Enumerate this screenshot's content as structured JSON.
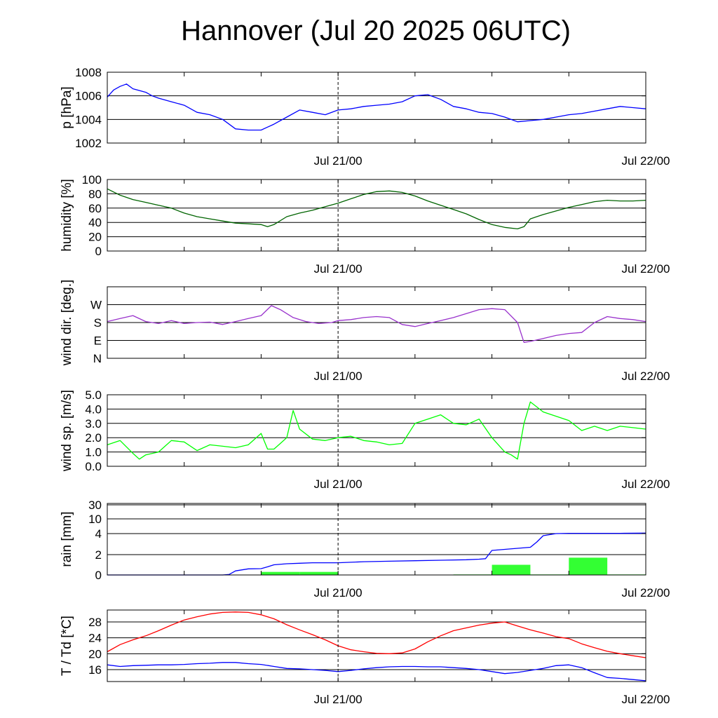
{
  "title": "Hannover (Jul 20 2025 06UTC)",
  "chart_data": [
    {
      "type": "line",
      "ylabel": "p [hPa]",
      "ylim": [
        1002,
        1008
      ],
      "yticks": [
        1002,
        1004,
        1006,
        1008
      ],
      "ytick_labels": [
        "1002",
        "1004",
        "1006",
        "1008"
      ],
      "xlim": [
        0,
        42
      ],
      "x_ticks": [
        {
          "x": 18,
          "label": "Jul 21/00"
        },
        {
          "x": 42,
          "label": "Jul 22/00"
        }
      ],
      "series": [
        {
          "color": "#0000ff",
          "x": [
            0,
            0.5,
            1,
            1.5,
            2,
            3,
            3.5,
            4,
            5,
            6,
            7,
            8,
            9,
            10,
            11,
            12,
            13,
            14,
            15,
            16,
            17,
            18,
            19,
            20,
            21,
            22,
            23,
            24,
            25,
            26,
            27,
            28,
            29,
            30,
            31,
            32,
            33,
            34,
            35,
            36,
            37,
            38,
            39,
            40,
            41,
            42
          ],
          "y": [
            1005.9,
            1006.5,
            1006.8,
            1007.0,
            1006.6,
            1006.3,
            1006.0,
            1005.8,
            1005.5,
            1005.2,
            1004.6,
            1004.4,
            1004.0,
            1003.2,
            1003.1,
            1003.1,
            1003.6,
            1004.2,
            1004.8,
            1004.6,
            1004.4,
            1004.8,
            1004.9,
            1005.1,
            1005.2,
            1005.3,
            1005.5,
            1006.0,
            1006.1,
            1005.7,
            1005.1,
            1004.9,
            1004.6,
            1004.5,
            1004.2,
            1003.8,
            1003.9,
            1004.0,
            1004.2,
            1004.4,
            1004.5,
            1004.7,
            1004.9,
            1005.1,
            1005.0,
            1004.9
          ]
        }
      ]
    },
    {
      "type": "line",
      "ylabel": "humidity [%]",
      "ylim": [
        0,
        100
      ],
      "yticks": [
        0,
        20,
        40,
        60,
        80,
        100
      ],
      "ytick_labels": [
        "0",
        "20",
        "40",
        "60",
        "80",
        "100"
      ],
      "xlim": [
        0,
        42
      ],
      "x_ticks": [
        {
          "x": 18,
          "label": "Jul 21/00"
        },
        {
          "x": 42,
          "label": "Jul 22/00"
        }
      ],
      "series": [
        {
          "color": "#006400",
          "x": [
            0,
            1,
            2,
            3,
            4,
            5,
            6,
            7,
            8,
            9,
            10,
            11,
            12,
            12.5,
            13,
            14,
            15,
            16,
            17,
            18,
            19,
            20,
            21,
            22,
            23,
            24,
            25,
            26,
            27,
            28,
            29,
            30,
            31,
            32,
            32.5,
            33,
            34,
            35,
            36,
            37,
            38,
            39,
            40,
            41,
            42
          ],
          "y": [
            87,
            78,
            72,
            68,
            64,
            60,
            53,
            48,
            45,
            42,
            39,
            38,
            37,
            34,
            37,
            48,
            53,
            57,
            62,
            67,
            73,
            79,
            83,
            84,
            82,
            77,
            70,
            64,
            58,
            52,
            44,
            37,
            33,
            31,
            34,
            45,
            51,
            56,
            61,
            65,
            69,
            71,
            70,
            70,
            71
          ]
        }
      ]
    },
    {
      "type": "line",
      "ylabel": "wind dir. [deg.]",
      "ylim": [
        0,
        360
      ],
      "yticks": [
        0,
        90,
        180,
        270
      ],
      "ytick_labels": [
        "N",
        "E",
        "S",
        "W"
      ],
      "xlim": [
        0,
        42
      ],
      "x_ticks": [
        {
          "x": 18,
          "label": "Jul 21/00"
        },
        {
          "x": 42,
          "label": "Jul 22/00"
        }
      ],
      "series": [
        {
          "color": "#9932cc",
          "x": [
            0,
            1,
            2,
            3,
            4,
            5,
            6,
            7,
            8,
            9,
            10,
            11,
            12,
            12.8,
            13.5,
            14.5,
            15.5,
            16.5,
            17.5,
            18,
            19,
            20,
            21,
            22,
            23,
            24,
            25,
            26,
            27,
            28,
            29,
            30,
            31,
            32,
            32.5,
            33,
            34,
            35,
            36,
            37,
            38,
            39,
            40,
            41,
            42
          ],
          "y": [
            185,
            200,
            215,
            185,
            175,
            190,
            175,
            180,
            182,
            170,
            185,
            200,
            215,
            265,
            245,
            205,
            185,
            175,
            180,
            190,
            195,
            205,
            210,
            205,
            170,
            160,
            175,
            190,
            205,
            225,
            245,
            250,
            245,
            180,
            80,
            85,
            100,
            115,
            125,
            130,
            180,
            210,
            200,
            195,
            185
          ]
        }
      ]
    },
    {
      "type": "line",
      "ylabel": "wind sp. [m/s]",
      "ylim": [
        0,
        5
      ],
      "yticks": [
        0,
        1,
        2,
        3,
        4,
        5
      ],
      "ytick_labels": [
        "0.0",
        "1.0",
        "2.0",
        "3.0",
        "4.0",
        "5.0"
      ],
      "xlim": [
        0,
        42
      ],
      "x_ticks": [
        {
          "x": 18,
          "label": "Jul 21/00"
        },
        {
          "x": 42,
          "label": "Jul 22/00"
        }
      ],
      "series": [
        {
          "color": "#00ff00",
          "x": [
            0,
            1,
            2,
            2.5,
            3,
            4,
            5,
            6,
            7,
            8,
            9,
            10,
            11,
            12,
            12.5,
            13,
            13.5,
            14,
            14.5,
            15,
            16,
            17,
            18,
            19,
            20,
            21,
            22,
            23,
            24,
            25,
            26,
            27,
            28,
            29,
            30,
            31,
            31.5,
            32,
            32.5,
            33,
            34,
            35,
            36,
            37,
            38,
            39,
            40,
            41,
            42
          ],
          "y": [
            1.5,
            1.8,
            0.9,
            0.5,
            0.8,
            1.0,
            1.8,
            1.7,
            1.1,
            1.5,
            1.4,
            1.3,
            1.5,
            2.3,
            1.2,
            1.2,
            1.6,
            2.0,
            3.9,
            2.6,
            1.9,
            1.8,
            2.0,
            2.1,
            1.8,
            1.7,
            1.5,
            1.6,
            3.0,
            3.3,
            3.6,
            3.0,
            2.9,
            3.3,
            2.0,
            1.0,
            0.8,
            0.5,
            3.0,
            4.5,
            3.8,
            3.5,
            3.2,
            2.5,
            2.8,
            2.5,
            2.8,
            2.7,
            2.6
          ]
        }
      ]
    },
    {
      "type": "bar+line",
      "ylabel": "rain [mm]",
      "ylim": [
        0,
        30
      ],
      "yticks": [
        0,
        2,
        4,
        10,
        30
      ],
      "ytick_labels": [
        "0",
        "2",
        "4",
        "10",
        "30"
      ],
      "xlim": [
        0,
        42
      ],
      "x_ticks": [
        {
          "x": 18,
          "label": "Jul 21/00"
        },
        {
          "x": 42,
          "label": "Jul 22/00"
        }
      ],
      "bars": {
        "color": "#33ff33",
        "x_start": [
          0,
          3,
          6,
          9,
          12,
          15,
          18,
          21,
          24,
          27,
          30,
          33,
          36,
          39
        ],
        "x_end": [
          3,
          6,
          9,
          12,
          15,
          18,
          21,
          24,
          27,
          30,
          33,
          36,
          39,
          42
        ],
        "values": [
          0,
          0,
          0,
          0,
          0.3,
          0.3,
          0,
          0.02,
          0,
          0.05,
          1.0,
          0.05,
          1.7,
          0.05
        ]
      },
      "series": [
        {
          "color": "#0000ff",
          "x": [
            0,
            9,
            9.5,
            10,
            11,
            12,
            12.5,
            13,
            14,
            15,
            16,
            18,
            20,
            22,
            24,
            26,
            28,
            29,
            29.5,
            30,
            31,
            32,
            33,
            33.5,
            34,
            35,
            36,
            38,
            40,
            42
          ],
          "y": [
            0,
            0,
            0.05,
            0.4,
            0.6,
            0.62,
            0.8,
            1.0,
            1.1,
            1.15,
            1.2,
            1.2,
            1.3,
            1.35,
            1.4,
            1.45,
            1.5,
            1.55,
            1.6,
            2.4,
            2.5,
            2.6,
            2.7,
            3.2,
            3.8,
            4.0,
            4.1,
            4.1,
            4.1,
            4.2
          ]
        }
      ]
    },
    {
      "type": "line",
      "ylabel": "T / Td [*C]",
      "ylim": [
        13,
        31
      ],
      "yticks": [
        16,
        20,
        24,
        28
      ],
      "ytick_labels": [
        "16",
        "20",
        "24",
        "28"
      ],
      "xlim": [
        0,
        42
      ],
      "x_ticks": [
        {
          "x": 18,
          "label": "Jul 21/00"
        },
        {
          "x": 42,
          "label": "Jul 22/00"
        }
      ],
      "series": [
        {
          "color": "#ff0000",
          "x": [
            0,
            1,
            2,
            3,
            4,
            5,
            6,
            7,
            8,
            9,
            10,
            11,
            12,
            13,
            14,
            15,
            16,
            17,
            18,
            19,
            20,
            21,
            22,
            23,
            24,
            25,
            26,
            27,
            28,
            29,
            30,
            31,
            32,
            33,
            34,
            35,
            36,
            37,
            38,
            39,
            40,
            41,
            42
          ],
          "y": [
            20.5,
            22.3,
            23.5,
            24.5,
            25.8,
            27.2,
            28.5,
            29.3,
            30.0,
            30.4,
            30.5,
            30.4,
            29.8,
            28.8,
            27.3,
            26.0,
            24.8,
            23.5,
            22.0,
            21.0,
            20.5,
            20.1,
            20.0,
            20.2,
            21.2,
            23.0,
            24.5,
            25.8,
            26.5,
            27.2,
            27.7,
            28.0,
            27.0,
            26.0,
            25.2,
            24.3,
            23.8,
            22.5,
            21.5,
            20.6,
            20.0,
            19.5,
            19.0
          ]
        },
        {
          "color": "#0000ff",
          "x": [
            0,
            1,
            2,
            3,
            4,
            5,
            6,
            7,
            8,
            9,
            10,
            11,
            12,
            13,
            14,
            15,
            16,
            17,
            18,
            19,
            20,
            21,
            22,
            23,
            24,
            25,
            26,
            27,
            28,
            29,
            30,
            31,
            32,
            33,
            34,
            35,
            36,
            37,
            38,
            39,
            40,
            41,
            42
          ],
          "y": [
            17.2,
            16.8,
            17.0,
            17.1,
            17.2,
            17.2,
            17.3,
            17.5,
            17.6,
            17.8,
            17.8,
            17.5,
            17.3,
            16.8,
            16.3,
            16.2,
            16.0,
            15.8,
            15.5,
            15.8,
            16.2,
            16.5,
            16.7,
            16.8,
            16.8,
            16.7,
            16.7,
            16.5,
            16.3,
            16.0,
            15.5,
            15.0,
            15.3,
            15.8,
            16.3,
            17.0,
            17.2,
            16.5,
            15.2,
            14.0,
            13.8,
            13.5,
            13.2
          ]
        }
      ]
    }
  ]
}
